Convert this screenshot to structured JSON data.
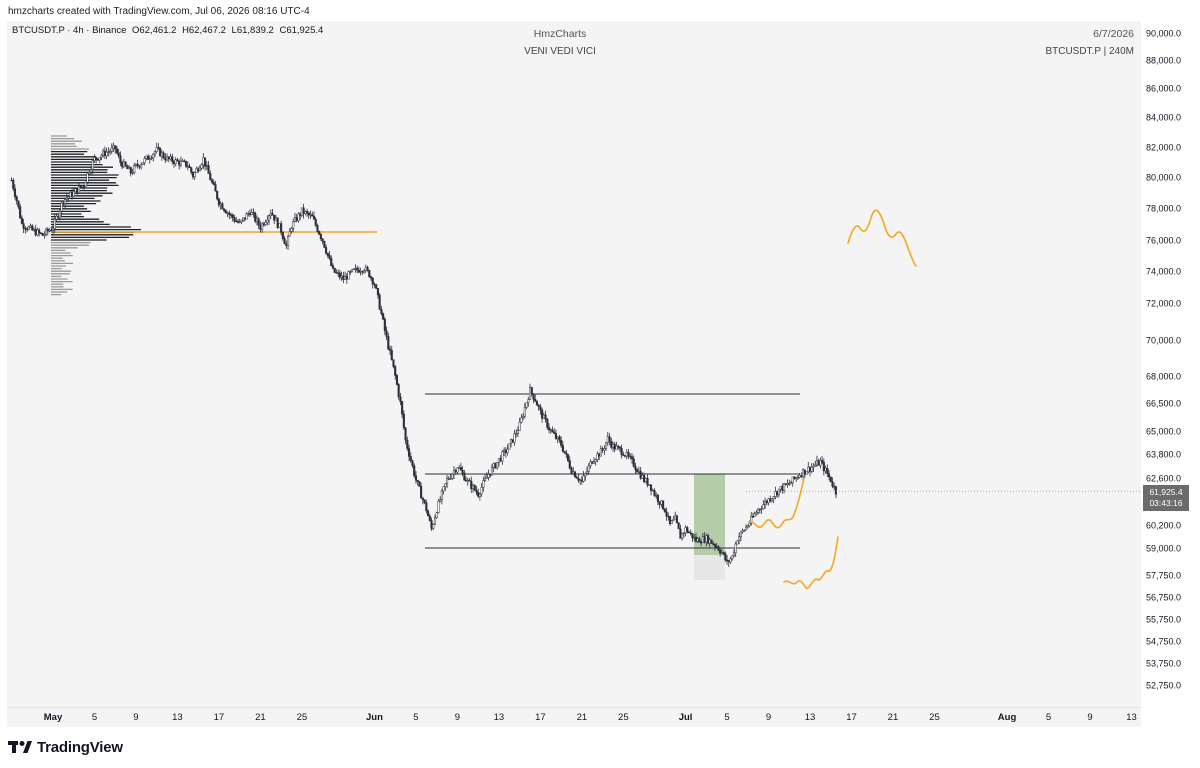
{
  "header": {
    "credit": "hmzcharts created with TradingView.com, Jul 06, 2026 08:16 UTC-4"
  },
  "legend": {
    "symbol": "BTCUSDT.P · 4h · Binance",
    "open": "O62,461.2",
    "high": "H62,467.2",
    "low": "L61,839.2",
    "close": "C61,925.4"
  },
  "watermark": {
    "author": "HmzCharts",
    "motto": "VENI VEDI VICI",
    "date": "6/7/2026",
    "symbol_tf": "BTCUSDT.P | 240M"
  },
  "price_tag": {
    "price": "61,925.4",
    "countdown": "03:43:16"
  },
  "footer": {
    "brand": "TradingView"
  },
  "colors": {
    "plot_bg": "#f4f4f4",
    "candle": "#2a2e39",
    "orange": "#f5a623",
    "box_green": "#9fbf8f",
    "level_line": "#2a2e39"
  },
  "chart_data": {
    "type": "candlestick",
    "symbol": "BTCUSDT.P",
    "timeframe": "4h",
    "y_axis": {
      "ticks": [
        {
          "label": "90,000.0",
          "v": 90000
        },
        {
          "label": "88,000.0",
          "v": 88000
        },
        {
          "label": "86,000.0",
          "v": 86000
        },
        {
          "label": "84,000.0",
          "v": 84000
        },
        {
          "label": "82,000.0",
          "v": 82000
        },
        {
          "label": "80,000.0",
          "v": 80000
        },
        {
          "label": "78,000.0",
          "v": 78000
        },
        {
          "label": "76,000.0",
          "v": 76000
        },
        {
          "label": "74,000.0",
          "v": 74000
        },
        {
          "label": "72,000.0",
          "v": 72000
        },
        {
          "label": "70,000.0",
          "v": 70000
        },
        {
          "label": "68,000.0",
          "v": 68000
        },
        {
          "label": "66,500.0",
          "v": 66500
        },
        {
          "label": "65,000.0",
          "v": 65000
        },
        {
          "label": "63,800.0",
          "v": 63800
        },
        {
          "label": "62,600.0",
          "v": 62600
        },
        {
          "label": "60,200.0",
          "v": 60200
        },
        {
          "label": "59,000.0",
          "v": 59000
        },
        {
          "label": "57,750.0",
          "v": 57750
        },
        {
          "label": "56,750.0",
          "v": 56750
        },
        {
          "label": "55,750.0",
          "v": 55750
        },
        {
          "label": "54,750.0",
          "v": 54750
        },
        {
          "label": "53,750.0",
          "v": 53750
        },
        {
          "label": "52,750.0",
          "v": 52750
        }
      ]
    },
    "x_axis": {
      "ticks": [
        {
          "label": "May",
          "d": 0,
          "bold": true
        },
        {
          "label": "5",
          "d": 4
        },
        {
          "label": "9",
          "d": 8
        },
        {
          "label": "13",
          "d": 12
        },
        {
          "label": "17",
          "d": 16
        },
        {
          "label": "21",
          "d": 20
        },
        {
          "label": "25",
          "d": 24
        },
        {
          "label": "Jun",
          "d": 31,
          "bold": true
        },
        {
          "label": "5",
          "d": 35
        },
        {
          "label": "9",
          "d": 39
        },
        {
          "label": "13",
          "d": 43
        },
        {
          "label": "17",
          "d": 47
        },
        {
          "label": "21",
          "d": 51
        },
        {
          "label": "25",
          "d": 55
        },
        {
          "label": "Jul",
          "d": 61,
          "bold": true
        },
        {
          "label": "5",
          "d": 65
        },
        {
          "label": "9",
          "d": 69
        },
        {
          "label": "13",
          "d": 73
        },
        {
          "label": "17",
          "d": 77
        },
        {
          "label": "21",
          "d": 81
        },
        {
          "label": "25",
          "d": 85
        },
        {
          "label": "Aug",
          "d": 92,
          "bold": true
        },
        {
          "label": "5",
          "d": 96
        },
        {
          "label": "9",
          "d": 100
        },
        {
          "label": "13",
          "d": 104
        }
      ]
    },
    "price_path": [
      [
        -4,
        79800
      ],
      [
        -3.5,
        78500
      ],
      [
        -3,
        77000
      ],
      [
        -2,
        76600
      ],
      [
        -1,
        76300
      ],
      [
        0,
        76800
      ],
      [
        1,
        78500
      ],
      [
        2,
        79000
      ],
      [
        3,
        79500
      ],
      [
        3.5,
        80500
      ],
      [
        4,
        81200
      ],
      [
        5,
        81600
      ],
      [
        6,
        81900
      ],
      [
        6.5,
        81000
      ],
      [
        7.5,
        80300
      ],
      [
        8,
        80700
      ],
      [
        9,
        81200
      ],
      [
        10,
        81800
      ],
      [
        11,
        81200
      ],
      [
        12,
        81000
      ],
      [
        13,
        80800
      ],
      [
        13.5,
        80100
      ],
      [
        14.5,
        81200
      ],
      [
        15,
        80200
      ],
      [
        16,
        78400
      ],
      [
        17,
        77600
      ],
      [
        18,
        77000
      ],
      [
        19,
        77800
      ],
      [
        20,
        76800
      ],
      [
        21,
        77800
      ],
      [
        22,
        76600
      ],
      [
        22.5,
        75600
      ],
      [
        23,
        76900
      ],
      [
        24,
        77800
      ],
      [
        25,
        77400
      ],
      [
        26,
        76000
      ],
      [
        27,
        74000
      ],
      [
        28,
        73500
      ],
      [
        29,
        74000
      ],
      [
        30,
        74200
      ],
      [
        30.5,
        73800
      ],
      [
        31,
        73200
      ],
      [
        32,
        70500
      ],
      [
        33,
        68000
      ],
      [
        33.5,
        66500
      ],
      [
        34,
        64500
      ],
      [
        35,
        62500
      ],
      [
        36,
        61000
      ],
      [
        36.5,
        60000
      ],
      [
        37,
        61000
      ],
      [
        38,
        62500
      ],
      [
        39,
        63200
      ],
      [
        40,
        62400
      ],
      [
        41,
        61800
      ],
      [
        42,
        62800
      ],
      [
        43,
        63500
      ],
      [
        44,
        64200
      ],
      [
        45,
        65300
      ],
      [
        46,
        67200
      ],
      [
        46.5,
        66700
      ],
      [
        47,
        66000
      ],
      [
        48,
        65000
      ],
      [
        49,
        64300
      ],
      [
        50,
        63000
      ],
      [
        51,
        62400
      ],
      [
        52,
        63500
      ],
      [
        53,
        64000
      ],
      [
        53.5,
        64600
      ],
      [
        54,
        64200
      ],
      [
        55,
        63900
      ],
      [
        56,
        63300
      ],
      [
        57,
        62500
      ],
      [
        57.5,
        62300
      ],
      [
        58,
        61800
      ],
      [
        59,
        61000
      ],
      [
        59.5,
        60200
      ],
      [
        60,
        60500
      ],
      [
        60.5,
        59600
      ],
      [
        61,
        60000
      ],
      [
        62,
        59400
      ],
      [
        63,
        59500
      ],
      [
        64,
        59100
      ],
      [
        64.5,
        58800
      ],
      [
        65,
        58300
      ],
      [
        65.5,
        58600
      ],
      [
        66,
        59500
      ],
      [
        67,
        60200
      ],
      [
        68,
        61000
      ],
      [
        69,
        61500
      ],
      [
        70,
        62000
      ],
      [
        71,
        62300
      ],
      [
        72,
        62800
      ],
      [
        73,
        63100
      ],
      [
        74,
        63400
      ],
      [
        75,
        62500
      ],
      [
        75.5,
        61900
      ]
    ],
    "volume_profile_poc": 76500,
    "levels": [
      {
        "name": "range-high",
        "v": 67000
      },
      {
        "name": "range-mid",
        "v": 62800
      },
      {
        "name": "range-low",
        "v": 59000
      }
    ]
  }
}
